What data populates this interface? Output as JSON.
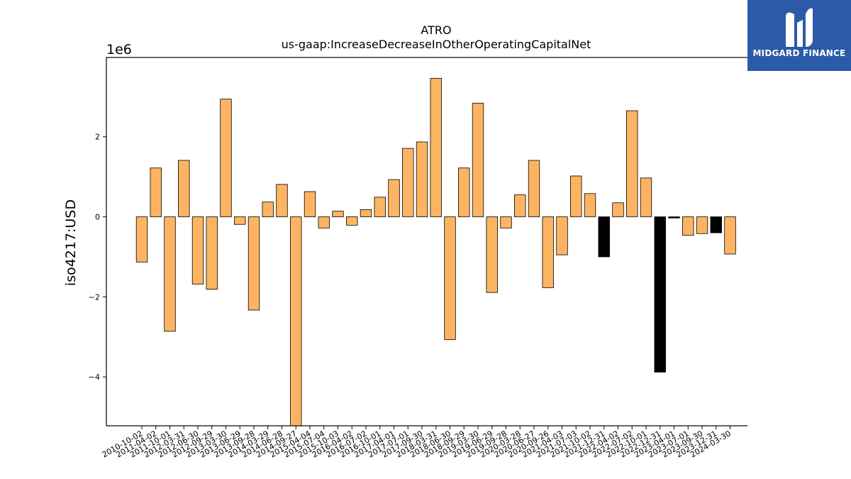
{
  "logo": {
    "text": "MIDGARD FINANCE",
    "bg_color": "#2b5aa8"
  },
  "chart_data": {
    "type": "bar",
    "title": "ATRO",
    "subtitle": "us-gaap:IncreaseDecreaseInOtherOperatingCapitalNet",
    "ylabel": "iso4217:USD",
    "xlabel": "",
    "y_scale_label": "1e6",
    "ylim": [
      -5.22,
      3.98
    ],
    "yticks": [
      {
        "value": -4,
        "label": "−4"
      },
      {
        "value": -2,
        "label": "−2"
      },
      {
        "value": 0,
        "label": "0"
      },
      {
        "value": 2,
        "label": "2"
      }
    ],
    "categories": [
      "2010-10-02",
      "2011-04-02",
      "2011-10-01",
      "2012-03-31",
      "2012-06-30",
      "2012-09-29",
      "2013-03-30",
      "2013-06-29",
      "2013-09-28",
      "2014-03-29",
      "2014-06-28",
      "2014-09-27",
      "2015-04-04",
      "2015-07-04",
      "2015-10-03",
      "2016-04-02",
      "2016-07-02",
      "2016-10-01",
      "2017-04-01",
      "2017-07-01",
      "2017-09-30",
      "2018-03-31",
      "2018-06-30",
      "2018-09-29",
      "2019-03-30",
      "2019-06-29",
      "2019-09-28",
      "2020-03-28",
      "2020-06-27",
      "2020-09-26",
      "2021-04-03",
      "2021-07-03",
      "2021-10-02",
      "2021-12-31",
      "2022-04-02",
      "2022-07-02",
      "2022-10-01",
      "2022-12-31",
      "2023-04-01",
      "2023-07-01",
      "2023-09-30",
      "2023-12-31",
      "2024-03-30"
    ],
    "values": [
      -1.13,
      1.22,
      -2.86,
      1.41,
      -1.68,
      -1.81,
      2.94,
      -0.19,
      -2.33,
      0.37,
      0.81,
      -5.22,
      0.63,
      -0.28,
      0.14,
      -0.21,
      0.18,
      0.49,
      0.93,
      1.71,
      1.87,
      3.46,
      -3.07,
      1.22,
      2.84,
      -1.89,
      -0.28,
      0.55,
      1.41,
      -1.77,
      -0.95,
      1.02,
      0.58,
      -1.0,
      0.35,
      2.65,
      0.97,
      -3.88,
      -0.03,
      -0.46,
      -0.42,
      -0.4,
      -0.93
    ],
    "bar_colors": [
      "#fdb462",
      "#fdb462",
      "#fdb462",
      "#fdb462",
      "#fdb462",
      "#fdb462",
      "#fdb462",
      "#fdb462",
      "#fdb462",
      "#fdb462",
      "#fdb462",
      "#fdb462",
      "#fdb462",
      "#fdb462",
      "#fdb462",
      "#fdb462",
      "#fdb462",
      "#fdb462",
      "#fdb462",
      "#fdb462",
      "#fdb462",
      "#fdb462",
      "#fdb462",
      "#fdb462",
      "#fdb462",
      "#fdb462",
      "#fdb462",
      "#fdb462",
      "#fdb462",
      "#fdb462",
      "#fdb462",
      "#fdb462",
      "#fdb462",
      "#000000",
      "#fdb462",
      "#fdb462",
      "#fdb462",
      "#000000",
      "#000000",
      "#fdb462",
      "#fdb462",
      "#000000",
      "#fdb462"
    ],
    "grid": false,
    "legend": "none"
  }
}
